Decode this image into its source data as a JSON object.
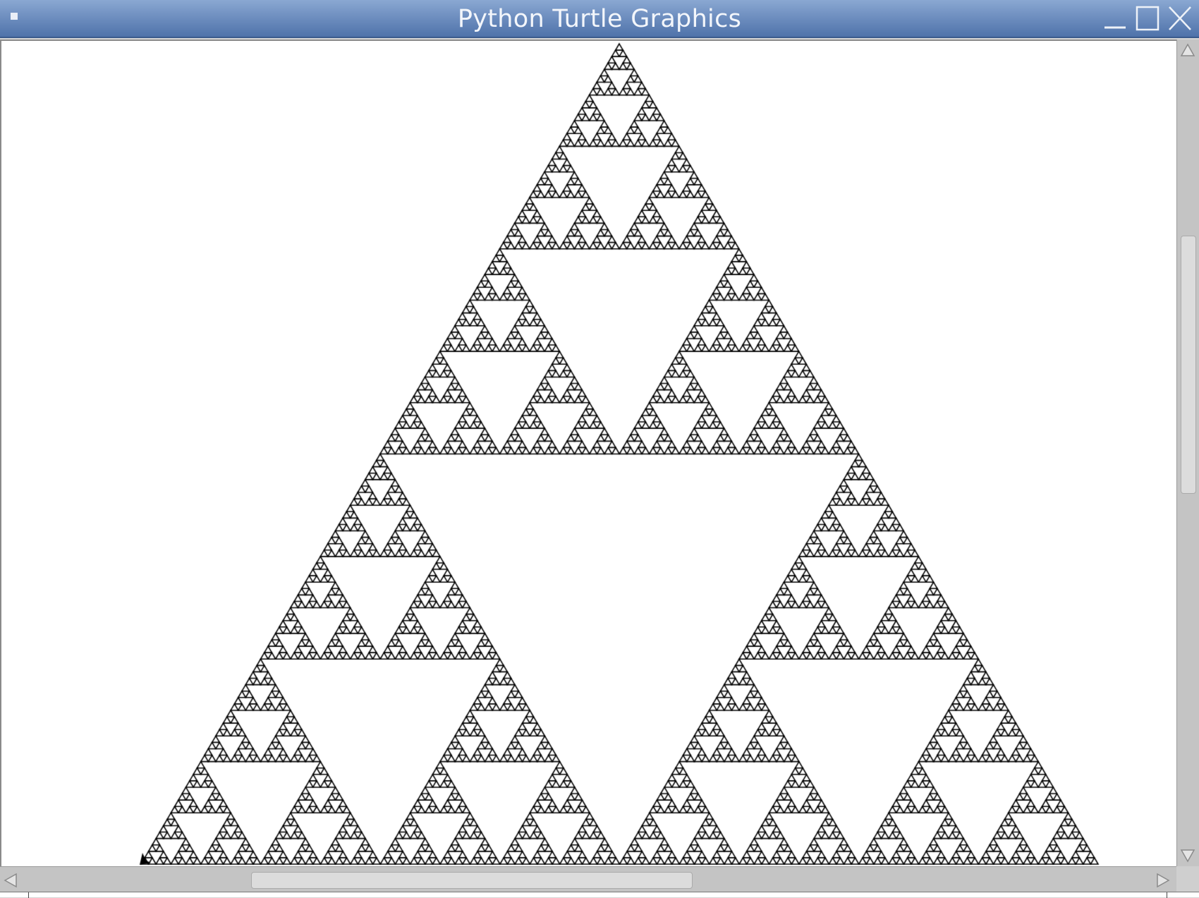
{
  "window": {
    "title": "Python Turtle Graphics",
    "titlebar_gradient": [
      "#8aa8d2",
      "#4f73aa"
    ],
    "controls": [
      "minimize-icon",
      "maximize-icon",
      "close-icon"
    ]
  },
  "canvas": {
    "background": "#ffffff",
    "drawing": "sierpinski-triangle",
    "recursion_depth": 7,
    "stroke_color": "#000000",
    "turtle_icon": "turtle-arrow-icon"
  },
  "scrollbars": {
    "vertical": {
      "position_fraction": 0.24,
      "visible_fraction": 0.31
    },
    "horizontal": {
      "position_fraction": 0.22,
      "visible_fraction": 0.37
    }
  }
}
